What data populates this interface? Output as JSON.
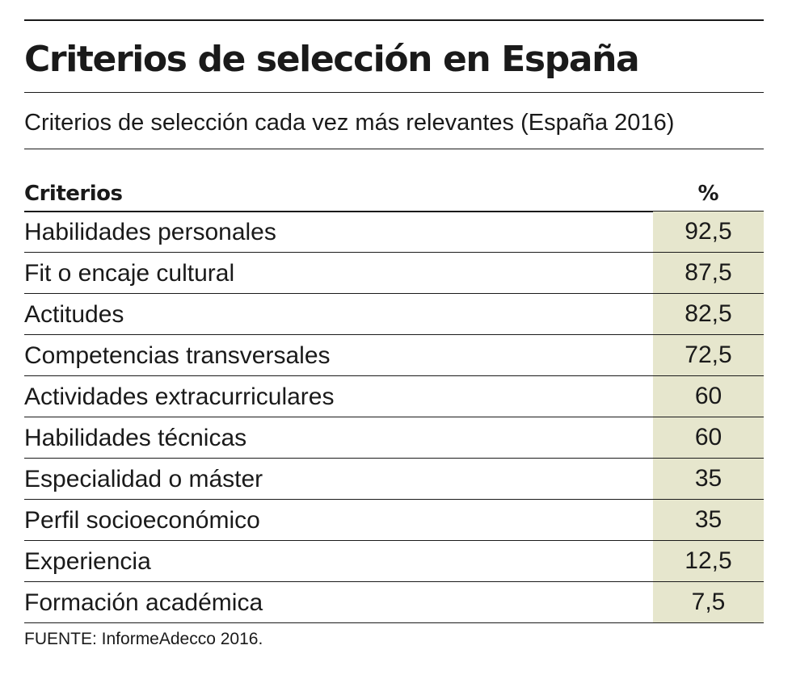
{
  "title": "Criterios de selección en España",
  "subtitle": "Criterios de selección cada vez más relevantes (España 2016)",
  "colors": {
    "value_cell": "#e6e6cd",
    "text": "#1a1a1a",
    "rules": "#1a1a1a"
  },
  "chart_data": {
    "type": "table",
    "title": "Criterios de selección en España",
    "subtitle": "Criterios de selección cada vez más relevantes (España 2016)",
    "columns": [
      "Criterios",
      "%"
    ],
    "rows": [
      {
        "label": "Habilidades personales",
        "value": "92,5"
      },
      {
        "label": "Fit o encaje cultural",
        "value": "87,5"
      },
      {
        "label": "Actitudes",
        "value": "82,5"
      },
      {
        "label": "Competencias transversales",
        "value": "72,5"
      },
      {
        "label": "Actividades extracurriculares",
        "value": "60"
      },
      {
        "label": "Habilidades técnicas",
        "value": "60"
      },
      {
        "label": "Especialidad o máster",
        "value": "35"
      },
      {
        "label": "Perfil socioeconómico",
        "value": "35"
      },
      {
        "label": "Experiencia",
        "value": "12,5"
      },
      {
        "label": "Formación académica",
        "value": "7,5"
      }
    ]
  },
  "source": "FUENTE: InformeAdecco 2016."
}
